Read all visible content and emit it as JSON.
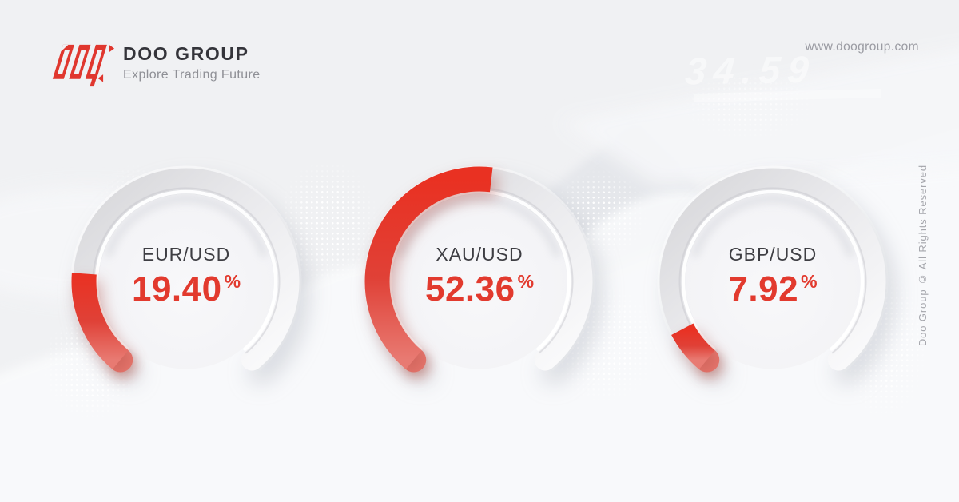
{
  "brand": {
    "name": "DOO GROUP",
    "tagline": "Explore Trading Future",
    "website": "www.doogroup.com",
    "copyright": "Doo Group © All Rights Reserved"
  },
  "watermark": "34.59",
  "colors": {
    "accent_red": "#E23A2E",
    "dark_text": "#3E3E43",
    "muted_text": "#9A9BA2",
    "background": "#F0F1F3",
    "track_gray": "#DCDCDF"
  },
  "chart_data": {
    "type": "gauge",
    "range": [
      0,
      100
    ],
    "arc_start_deg": 220,
    "arc_sweep_deg": 280,
    "unit": "%",
    "gauges": [
      {
        "label": "EUR/USD",
        "value": 19.4,
        "display": "19.40"
      },
      {
        "label": "XAU/USD",
        "value": 52.36,
        "display": "52.36"
      },
      {
        "label": "GBP/USD",
        "value": 7.92,
        "display": "7.92"
      }
    ]
  }
}
